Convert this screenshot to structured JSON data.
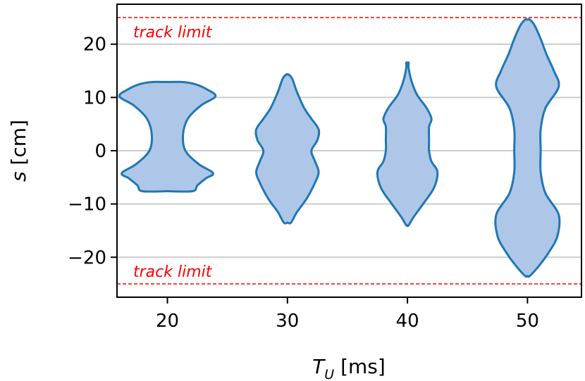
{
  "chart_data": {
    "type": "violin",
    "xlabel": {
      "symbol": "T",
      "subscript": "U",
      "unit": " [ms]"
    },
    "ylabel": {
      "symbol": "s",
      "unit": " [cm]"
    },
    "categories": [
      "20",
      "30",
      "40",
      "50"
    ],
    "x_values": [
      20,
      30,
      40,
      50
    ],
    "xlim": [
      15.8,
      54.5
    ],
    "ylim": [
      -27.5,
      27.5
    ],
    "yticks": [
      -20,
      -10,
      0,
      10,
      20
    ],
    "ytick_labels": [
      "−20",
      "−10",
      "0",
      "10",
      "20"
    ],
    "grid": "horizontal",
    "colors": {
      "fill": "#aec7e8",
      "edge": "#1f77b4",
      "grid": "#cccccc",
      "limit": "#ff0000"
    },
    "track_limits": [
      {
        "value": 25,
        "label": "track limit"
      },
      {
        "value": -25,
        "label": "track limit"
      }
    ],
    "violins": [
      {
        "x": 20,
        "profile": [
          [
            -7.6,
            2.1
          ],
          [
            -6.5,
            2.5
          ],
          [
            -5.2,
            3.2
          ],
          [
            -4.2,
            3.8
          ],
          [
            -2.5,
            2.6
          ],
          [
            0,
            1.5
          ],
          [
            3,
            1.3
          ],
          [
            6,
            1.7
          ],
          [
            8.5,
            2.8
          ],
          [
            10.2,
            4.0
          ],
          [
            11.5,
            3.3
          ],
          [
            12.5,
            2.3
          ],
          [
            12.9,
            1.2
          ]
        ]
      },
      {
        "x": 30,
        "profile": [
          [
            -13.5,
            0.3
          ],
          [
            -11.5,
            0.8
          ],
          [
            -9,
            1.6
          ],
          [
            -6,
            2.3
          ],
          [
            -4,
            2.6
          ],
          [
            -2,
            2.3
          ],
          [
            0,
            2.0
          ],
          [
            2,
            2.5
          ],
          [
            4,
            2.6
          ],
          [
            6,
            2.0
          ],
          [
            8,
            1.4
          ],
          [
            11,
            0.8
          ],
          [
            13.5,
            0.4
          ],
          [
            14.3,
            0.1
          ]
        ]
      },
      {
        "x": 40,
        "profile": [
          [
            -14,
            0.1
          ],
          [
            -12.5,
            0.5
          ],
          [
            -10,
            1.3
          ],
          [
            -7,
            2.2
          ],
          [
            -4,
            2.5
          ],
          [
            -2,
            2.0
          ],
          [
            0,
            1.8
          ],
          [
            2,
            1.8
          ],
          [
            4.5,
            1.8
          ],
          [
            6,
            2.0
          ],
          [
            8,
            1.6
          ],
          [
            10.5,
            0.8
          ],
          [
            13,
            0.35
          ],
          [
            15.5,
            0.1
          ],
          [
            16.5,
            0.1
          ]
        ]
      },
      {
        "x": 50,
        "profile": [
          [
            -23.5,
            0.2
          ],
          [
            -21.5,
            1.0
          ],
          [
            -19,
            1.8
          ],
          [
            -16,
            2.5
          ],
          [
            -12,
            2.6
          ],
          [
            -8,
            1.5
          ],
          [
            -4,
            1.1
          ],
          [
            0,
            1.1
          ],
          [
            4,
            1.1
          ],
          [
            8,
            1.5
          ],
          [
            12,
            2.6
          ],
          [
            15,
            2.2
          ],
          [
            18,
            1.6
          ],
          [
            21,
            1.1
          ],
          [
            23.5,
            0.6
          ],
          [
            24.6,
            0.2
          ]
        ]
      }
    ]
  }
}
